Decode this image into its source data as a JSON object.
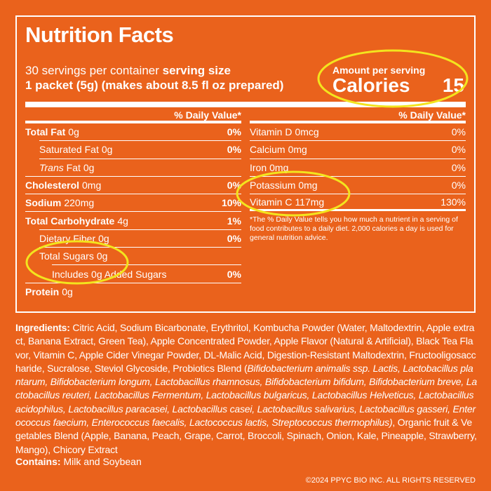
{
  "title": "Nutrition Facts",
  "servings": "30 servings per container",
  "serving_size_label": "serving size",
  "serving_size": "1 packet (5g) (makes about 8.5 fl oz prepared)",
  "amount_per_serving": "Amount per serving",
  "calories_label": "Calories",
  "calories": "15",
  "dv_header": "% Daily Value*",
  "left_rows": [
    {
      "name": "Total Fat",
      "amount": "0g",
      "dv": "0%"
    },
    {
      "name": "Saturated Fat",
      "amount": "0g",
      "dv": "0%"
    },
    {
      "name_italic": "Trans",
      "name": "Fat",
      "amount": "0g"
    },
    {
      "name": "Cholesterol",
      "amount": "0mg",
      "dv": "0%"
    },
    {
      "name": "Sodium",
      "amount": "220mg",
      "dv": "10%"
    },
    {
      "name": "Total Carbohydrate",
      "amount": "4g",
      "dv": "1%"
    },
    {
      "name": "Dietary Fiber",
      "amount": "0g",
      "dv": "0%"
    },
    {
      "name": "Total Sugars",
      "amount": "0g"
    },
    {
      "name": "Includes 0g Added Sugars",
      "dv": "0%"
    },
    {
      "name": "Protein",
      "amount": "0g"
    }
  ],
  "right_rows": [
    {
      "name": "Vitamin D",
      "amount": "0mcg",
      "dv": "0%"
    },
    {
      "name": "Calcium",
      "amount": "0mg",
      "dv": "0%"
    },
    {
      "name": "Iron",
      "amount": "0mg",
      "dv": "0%"
    },
    {
      "name": "Potassium",
      "amount": "0mg",
      "dv": "0%"
    },
    {
      "name": "Vitamin C",
      "amount": "117mg",
      "dv": "130%"
    }
  ],
  "footnote": "*The % Daily Value tells you how much a nutrient in a serving of food contributes to a daily diet. 2,000 calories a day is used for general nutrition advice.",
  "ingredients": {
    "label": "Ingredients:",
    "text_1": " Citric Acid, Sodium Bicarbonate, Erythritol, Kombucha Powder (Water, Maltodextrin, Apple extract, Banana Extract, Green Tea), Apple Concentrated Powder, Apple Flavor (Natural & Artificial), Black Tea Flavor, Vitamin C, Apple Cider Vinegar Powder, DL-Malic Acid, Digestion-Resistant Maltodextrin, Fructooligosaccharide, Sucralose, Steviol Glycoside, Probiotics Blend (",
    "italic": "Bifidobacterium animalis ssp. Lactis, Lactobacillus plantarum, Bifidobacterium longum, Lactobacillus rhamnosus, Bifidobacterium bifidum, Bifidobacterium breve, Lactobacillus reuteri, Lactobacillus Fermentum, Lactobacillus bulgaricus, Lactobacillus Helveticus, Lactobacillus acidophilus, Lactobacillus paracasei, Lactobacillus casei, Lactobacillus salivarius, Lactobacillus gasseri, Enterococcus faecium, Enterococcus faecalis, Lactococcus lactis, Streptococcus thermophilus)",
    "text_2": ", Organic fruit & Vegetables Blend (Apple, Banana, Peach, Grape, Carrot, Broccoli, Spinach, Onion, Kale, Pineapple, Strawberry, Mango), Chicory Extract"
  },
  "contains": {
    "label": "Contains:",
    "text": " Milk and Soybean"
  },
  "copyright": "©2024 PPYC BIO INC. ALL RIGHTS RESERVED"
}
